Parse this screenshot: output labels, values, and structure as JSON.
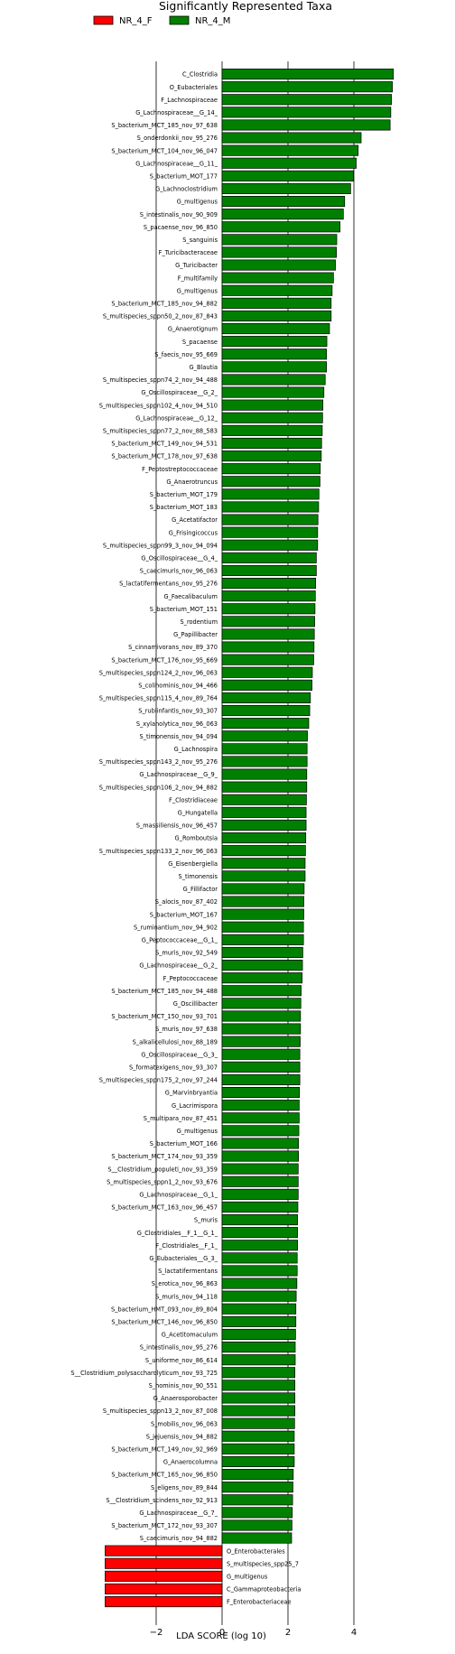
{
  "chart_data": {
    "type": "bar",
    "orientation": "horizontal",
    "title": "Significantly Represented Taxa",
    "xlabel": "LDA SCORE (log 10)",
    "ylabel": "",
    "xlim": [
      -3.5,
      5.3
    ],
    "xticks": [
      -2,
      0,
      2,
      4
    ],
    "xtick_labels": [
      "−2",
      "0",
      "2",
      "4"
    ],
    "grid": "vertical lines at -2, 0, 2, 4",
    "legend_position": "top-left",
    "legend": [
      {
        "name": "NR_4_F",
        "color": "#ff0000"
      },
      {
        "name": "NR_4_M",
        "color": "#008000"
      }
    ],
    "categories": [
      "C_Clostridia",
      "O_Eubacteriales",
      "F_Lachnospiraceae",
      "G_Lachnospiraceae__G_14_",
      "S_bacterium_MCT_185_nov_97_638",
      "S_onderdonkii_nov_95_276",
      "S_bacterium_MCT_104_nov_96_047",
      "G_Lachnospiraceae__G_11_",
      "S_bacterium_MOT_177",
      "G_Lachnoclostridium",
      "G_multigenus",
      "S_intestinalis_nov_90_909",
      "S_pacaense_nov_96_850",
      "S_sanguinis",
      "F_Turicibacteraceae",
      "G_Turicibacter",
      "F_multifamily",
      "G_multigenus",
      "S_bacterium_MCT_185_nov_94_882",
      "S_multispecies_sppn50_2_nov_87_843",
      "G_Anaerotignum",
      "S_pacaense",
      "S_faecis_nov_95_669",
      "G_Blautia",
      "S_multispecies_sppn74_2_nov_94_488",
      "G_Oscillospiraceae__G_2_",
      "S_multispecies_sppn102_4_nov_94_510",
      "G_Lachnospiraceae__G_12_",
      "S_multispecies_sppn77_2_nov_88_583",
      "S_bacterium_MCT_149_nov_94_531",
      "S_bacterium_MCT_178_nov_97_638",
      "F_Peptostreptococcaceae",
      "G_Anaerotruncus",
      "S_bacterium_MOT_179",
      "S_bacterium_MOT_183",
      "G_Acetatifactor",
      "G_Frisingicoccus",
      "S_multispecies_sppn99_3_nov_94_094",
      "G_Oscillospiraceae__G_4_",
      "S_caecimuris_nov_96_063",
      "S_lactatifermentans_nov_95_276",
      "G_Faecalibaculum",
      "S_bacterium_MOT_151",
      "S_rodentium",
      "G_Papillibacter",
      "S_cinnamivorans_nov_89_370",
      "S_bacterium_MCT_176_nov_95_669",
      "S_multispecies_sppn124_2_nov_96_063",
      "S_colihominis_nov_94_466",
      "S_multispecies_sppn115_4_nov_89_764",
      "S_rubiinfantis_nov_93_307",
      "S_xylanolytica_nov_96_063",
      "S_timonensis_nov_94_094",
      "G_Lachnospira",
      "S_multispecies_sppn143_2_nov_95_276",
      "G_Lachnospiraceae__G_9_",
      "S_multispecies_sppn106_2_nov_94_882",
      "F_Clostridiaceae",
      "G_Hungatella",
      "S_massiliensis_nov_96_457",
      "G_Romboutsia",
      "S_multispecies_sppn133_2_nov_96_063",
      "G_Eisenbergiella",
      "S_timonensis",
      "G_Fillifactor",
      "S_alocis_nov_87_402",
      "S_bacterium_MOT_167",
      "S_ruminantium_nov_94_902",
      "G_Peptococcaceae__G_1_",
      "S_muris_nov_92_549",
      "G_Lachnospiraceae__G_2_",
      "F_Peptococcaceae",
      "S_bacterium_MCT_185_nov_94_488",
      "G_Oscillibacter",
      "S_bacterium_MCT_150_nov_93_701",
      "S_muris_nov_97_638",
      "S_alkalicellulosi_nov_88_189",
      "G_Oscillospiraceae__G_3_",
      "S_formatexigens_nov_93_307",
      "S_multispecies_sppn175_2_nov_97_244",
      "G_Marvinbryantia",
      "G_Lacrimispora",
      "S_multipara_nov_87_451",
      "G_multigenus",
      "S_bacterium_MOT_166",
      "S_bacterium_MCT_174_nov_93_359",
      "S__Clostridium_populeti_nov_93_359",
      "S_multispecies_sppn1_2_nov_93_676",
      "G_Lachnospiraceae__G_1_",
      "S_bacterium_MCT_163_nov_96_457",
      "S_muris",
      "G_Clostridiales__F_1__G_1_",
      "F_Clostridiales__F_1_",
      "G_Eubacteriales__G_3_",
      "S_lactatifermentans",
      "S_erotica_nov_96_863",
      "S_muris_nov_94_118",
      "S_bacterium_HMT_093_nov_89_804",
      "S_bacterium_MCT_146_nov_96_850",
      "G_Acetitomaculum",
      "S_intestinalis_nov_95_276",
      "S_uniforme_nov_86_614",
      "S__Clostridium_polysaccharolyticum_nov_93_725",
      "S_hominis_nov_90_551",
      "G_Anaerosporobacter",
      "S_multispecies_sppn13_2_nov_87_008",
      "S_mobilis_nov_96_063",
      "S_jejuensis_nov_94_882",
      "S_bacterium_MCT_149_nov_92_969",
      "G_Anaerocolumna",
      "S_bacterium_MCT_165_nov_96_850",
      "S_eligens_nov_89_844",
      "S__Clostridium_scindens_nov_92_913",
      "G_Lachnospiraceae__G_7_",
      "S_bacterium_MCT_172_nov_93_307",
      "S_caecimuris_nov_94_882",
      "O_Enterobacterales",
      "S_multispecies_spp25_7",
      "G_multigenus",
      "C_Gammaproteobacteria",
      "F_Enterobacteriaceae"
    ],
    "values": [
      5.2,
      5.17,
      5.14,
      5.12,
      5.1,
      4.22,
      4.13,
      4.07,
      3.99,
      3.9,
      3.72,
      3.68,
      3.58,
      3.48,
      3.47,
      3.44,
      3.38,
      3.34,
      3.31,
      3.31,
      3.26,
      3.18,
      3.17,
      3.17,
      3.13,
      3.09,
      3.06,
      3.05,
      3.04,
      3.02,
      3.01,
      2.98,
      2.97,
      2.94,
      2.93,
      2.91,
      2.9,
      2.9,
      2.86,
      2.86,
      2.84,
      2.83,
      2.82,
      2.81,
      2.8,
      2.79,
      2.78,
      2.74,
      2.73,
      2.68,
      2.66,
      2.63,
      2.59,
      2.58,
      2.58,
      2.57,
      2.57,
      2.56,
      2.55,
      2.55,
      2.54,
      2.53,
      2.52,
      2.52,
      2.49,
      2.48,
      2.48,
      2.47,
      2.47,
      2.45,
      2.44,
      2.43,
      2.4,
      2.39,
      2.38,
      2.38,
      2.37,
      2.36,
      2.36,
      2.36,
      2.35,
      2.34,
      2.34,
      2.33,
      2.32,
      2.32,
      2.31,
      2.31,
      2.31,
      2.3,
      2.29,
      2.29,
      2.29,
      2.28,
      2.28,
      2.27,
      2.25,
      2.24,
      2.24,
      2.23,
      2.22,
      2.22,
      2.21,
      2.21,
      2.21,
      2.21,
      2.2,
      2.19,
      2.19,
      2.19,
      2.16,
      2.15,
      2.14,
      2.13,
      2.12,
      2.11,
      -3.55,
      -3.55,
      -3.55,
      -3.55,
      -3.55
    ],
    "colors": {
      "NR_4_F": "#ff0000",
      "NR_4_M": "#008000"
    },
    "group_split_index": 116
  }
}
